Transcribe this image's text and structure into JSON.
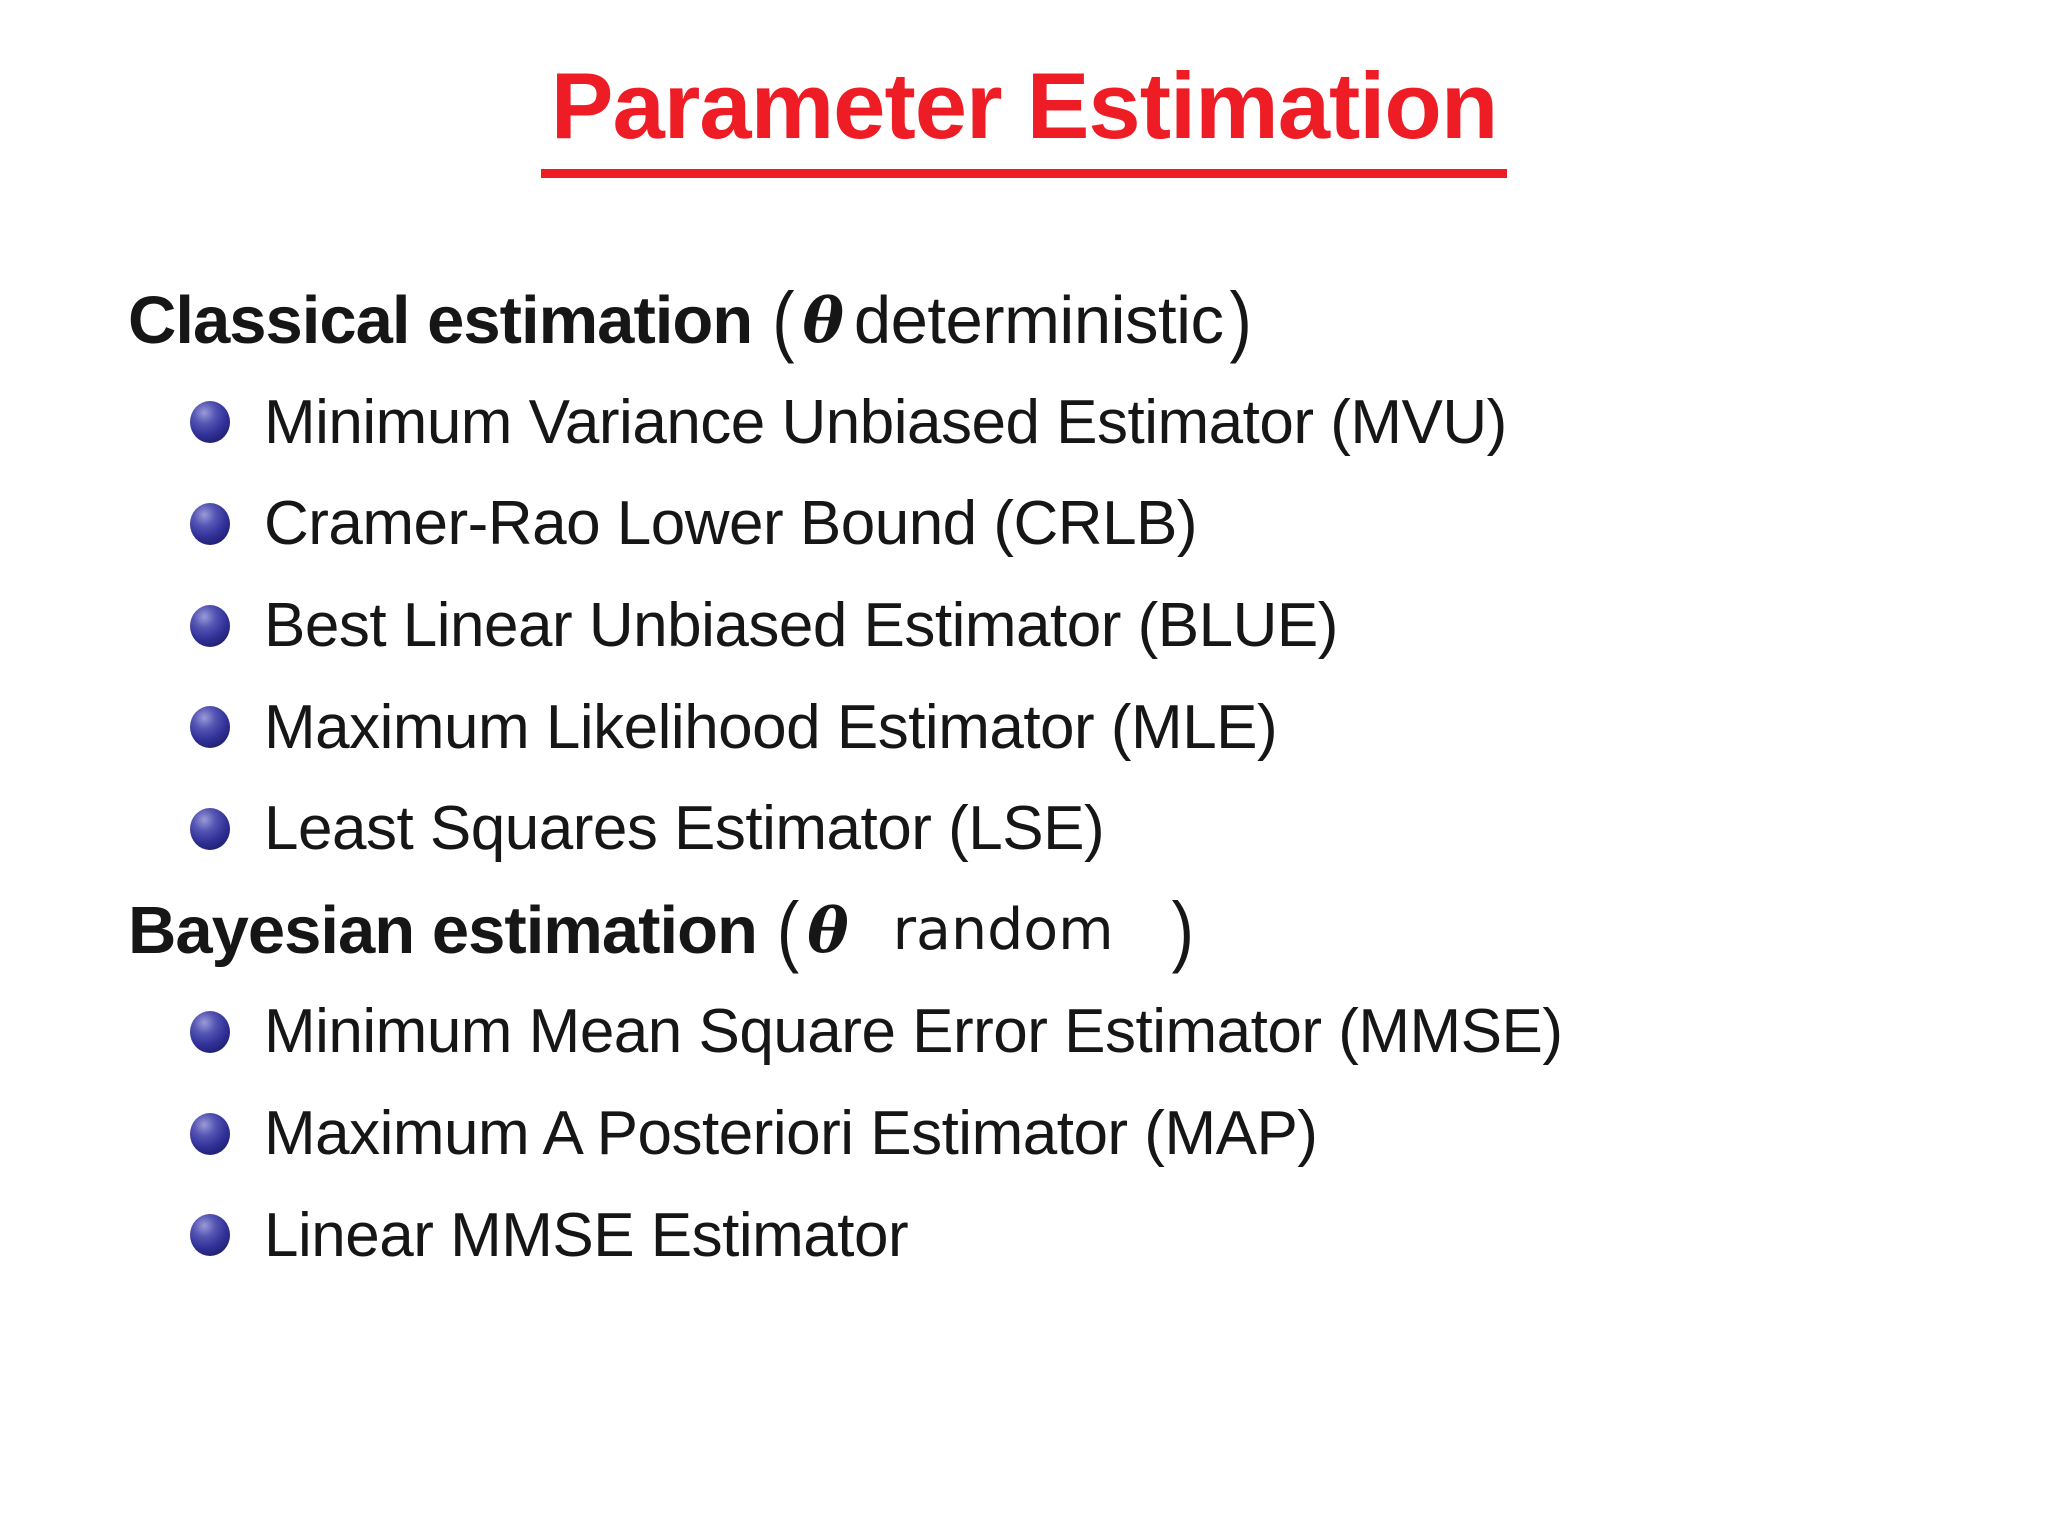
{
  "slide": {
    "title": "Parameter Estimation",
    "colors": {
      "title": "#ee1c24",
      "text": "#161616",
      "bullet": "#32329a",
      "background": "#ffffff"
    },
    "sections": [
      {
        "heading": {
          "bold": "Classical estimation",
          "open_paren": "(",
          "theta": "θ",
          "qualifier": "deterministic",
          "close_paren": ")"
        },
        "items": [
          "Minimum Variance Unbiased Estimator (MVU)",
          "Cramer-Rao Lower Bound (CRLB)",
          "Best Linear Unbiased Estimator (BLUE)",
          "Maximum Likelihood Estimator (MLE)",
          "Least Squares Estimator (LSE)"
        ]
      },
      {
        "heading": {
          "bold": "Bayesian estimation",
          "open_paren": "(",
          "theta": "θ",
          "qualifier": "random",
          "close_paren": ")"
        },
        "items": [
          "Minimum Mean Square Error Estimator (MMSE)",
          "Maximum A Posteriori Estimator (MAP)",
          "Linear MMSE Estimator"
        ]
      }
    ]
  }
}
